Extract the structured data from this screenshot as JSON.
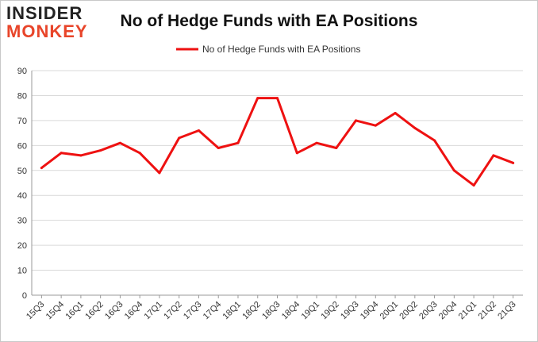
{
  "logo": {
    "line1": "INSIDER",
    "line2": "MONKEY"
  },
  "colors": {
    "series": "#ee1111",
    "grid": "#d9d9d9",
    "axis": "#999999",
    "logo_accent": "#e8452a"
  },
  "chart_data": {
    "type": "line",
    "title": "No of Hedge Funds with EA Positions",
    "xlabel": "",
    "ylabel": "",
    "ylim": [
      0,
      90
    ],
    "yticks": [
      0,
      10,
      20,
      30,
      40,
      50,
      60,
      70,
      80,
      90
    ],
    "grid": true,
    "legend_position": "top-center",
    "categories": [
      "15Q3",
      "15Q4",
      "16Q1",
      "16Q2",
      "16Q3",
      "16Q4",
      "17Q1",
      "17Q2",
      "17Q3",
      "17Q4",
      "18Q1",
      "18Q2",
      "18Q3",
      "18Q4",
      "19Q1",
      "19Q2",
      "19Q3",
      "19Q4",
      "20Q1",
      "20Q2",
      "20Q3",
      "20Q4",
      "21Q1",
      "21Q2",
      "21Q3"
    ],
    "series": [
      {
        "name": "No of Hedge Funds with EA Positions",
        "values": [
          51,
          57,
          56,
          58,
          61,
          57,
          49,
          63,
          66,
          59,
          61,
          79,
          79,
          57,
          61,
          59,
          70,
          68,
          73,
          67,
          62,
          50,
          44,
          56,
          53
        ]
      }
    ]
  }
}
